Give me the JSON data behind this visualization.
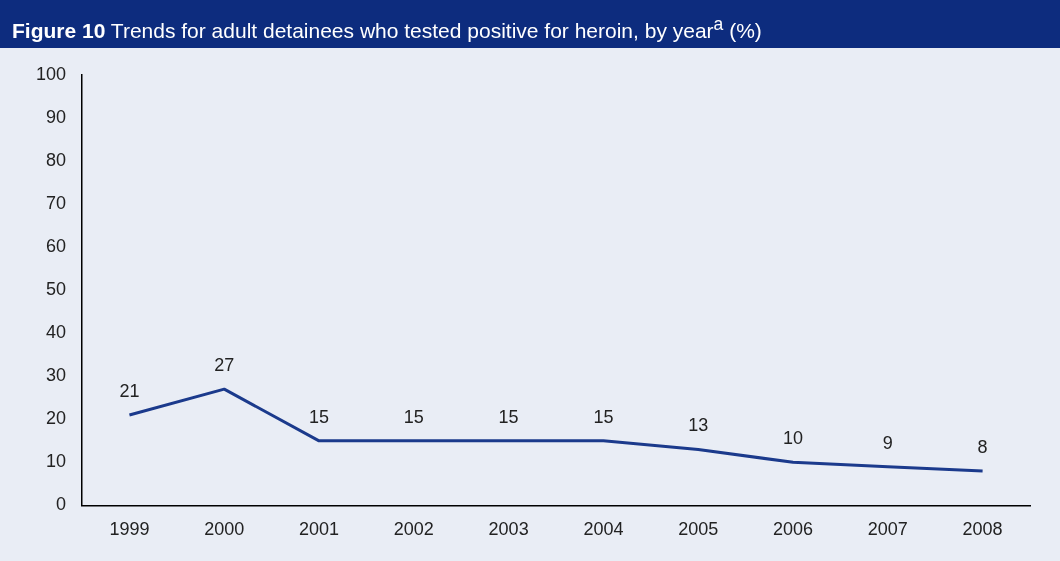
{
  "chart_data": {
    "type": "line",
    "title": "Figure 10 Trends for adult detainees who tested positive for heroin, by year$^{a}$ (%)",
    "categories": [
      "1999",
      "2000",
      "2001",
      "2002",
      "2003",
      "2004",
      "2005",
      "2006",
      "2007",
      "2008"
    ],
    "series": [
      {
        "color": "#1b3a8c",
        "values": [
          21,
          27,
          15,
          15,
          15,
          15,
          13,
          10,
          9,
          8
        ]
      }
    ],
    "ylim": [
      0,
      100
    ],
    "yticks": [
      0,
      10,
      20,
      30,
      40,
      50,
      60,
      70,
      80,
      90,
      100
    ],
    "grid": false,
    "legend": false,
    "marker": "none",
    "line_style": "solid",
    "data_labels": true
  }
}
